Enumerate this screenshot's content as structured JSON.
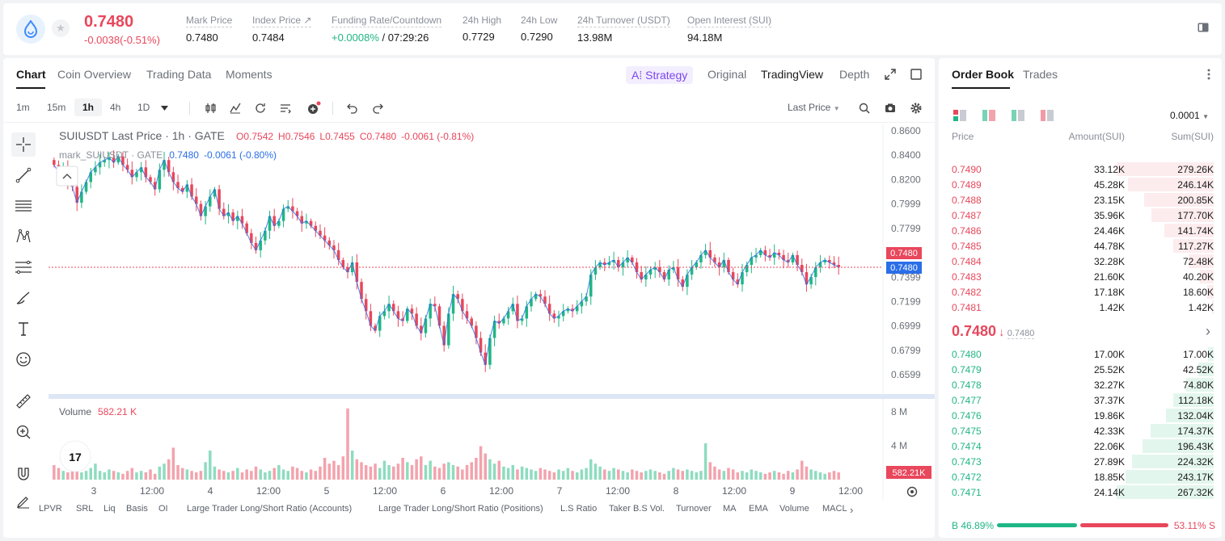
{
  "ticker": {
    "last_price": "0.7480",
    "change": "-0.0038(-0.51%)",
    "stats": [
      {
        "label": "Mark Price",
        "value": "0.7480"
      },
      {
        "label": "Index Price ↗",
        "value": "0.7484"
      },
      {
        "label": "Funding Rate/Countdown",
        "value_green": "+0.0008%",
        "value": " / 07:29:26"
      },
      {
        "label": "24h High",
        "value": "0.7729"
      },
      {
        "label": "24h Low",
        "value": "0.7290"
      },
      {
        "label": "24h Turnover (USDT)",
        "value": "13.98M"
      },
      {
        "label": "Open Interest (SUI)",
        "value": "94.18M"
      }
    ]
  },
  "chart_tabs": [
    "Chart",
    "Coin Overview",
    "Trading Data",
    "Moments"
  ],
  "strategy_label": "A⁞ Strategy",
  "view_tabs": [
    "Original",
    "TradingView",
    "Depth"
  ],
  "timeframes": [
    "1m",
    "15m",
    "1h",
    "4h",
    "1D"
  ],
  "price_source": "Last Price",
  "legend": {
    "main_name": "SUIUSDT Last Price · 1h · GATE",
    "o": "O0.7542",
    "h": "H0.7546",
    "l": "L0.7455",
    "c": "C0.7480",
    "chg": "-0.0061 (-0.81%)",
    "mark_name": "mark_SUIUSDT · GATE",
    "mark_val": "0.7480",
    "mark_chg": "-0.0061 (-0.80%)",
    "volume_label": "Volume",
    "volume_val": "582.21 K"
  },
  "chart_data": {
    "type": "candlestick",
    "price_axis": [
      "0.8600",
      "0.8400",
      "0.8200",
      "0.7999",
      "0.7799",
      "0.7399",
      "0.7199",
      "0.6999",
      "0.6799",
      "0.6599"
    ],
    "ylim": [
      0.6599,
      0.86
    ],
    "volume_axis": [
      "8 M",
      "4 M"
    ],
    "x_labels": [
      "3",
      "12:00",
      "4",
      "12:00",
      "5",
      "12:00",
      "6",
      "12:00",
      "7",
      "12:00",
      "8",
      "12:00",
      "9",
      "12:00"
    ],
    "last_price_tag": "0.7480",
    "mark_price_tag": "0.7480",
    "volume_tag": "582.21K",
    "close_path": [
      0.832,
      0.826,
      0.829,
      0.818,
      0.814,
      0.801,
      0.81,
      0.818,
      0.826,
      0.83,
      0.834,
      0.836,
      0.838,
      0.834,
      0.839,
      0.832,
      0.828,
      0.822,
      0.826,
      0.83,
      0.822,
      0.818,
      0.812,
      0.828,
      0.836,
      0.826,
      0.818,
      0.813,
      0.81,
      0.816,
      0.806,
      0.8,
      0.79,
      0.798,
      0.806,
      0.812,
      0.796,
      0.79,
      0.793,
      0.786,
      0.79,
      0.784,
      0.776,
      0.768,
      0.762,
      0.77,
      0.778,
      0.79,
      0.782,
      0.786,
      0.796,
      0.798,
      0.794,
      0.79,
      0.784,
      0.786,
      0.782,
      0.778,
      0.774,
      0.77,
      0.766,
      0.762,
      0.754,
      0.748,
      0.744,
      0.752,
      0.736,
      0.722,
      0.712,
      0.7,
      0.696,
      0.708,
      0.712,
      0.718,
      0.712,
      0.706,
      0.704,
      0.714,
      0.71,
      0.7,
      0.694,
      0.706,
      0.718,
      0.716,
      0.7,
      0.684,
      0.71,
      0.726,
      0.722,
      0.712,
      0.706,
      0.7,
      0.69,
      0.678,
      0.668,
      0.69,
      0.704,
      0.702,
      0.706,
      0.712,
      0.718,
      0.704,
      0.706,
      0.716,
      0.722,
      0.726,
      0.724,
      0.718,
      0.71,
      0.706,
      0.708,
      0.712,
      0.714,
      0.712,
      0.716,
      0.72,
      0.724,
      0.742,
      0.748,
      0.752,
      0.75,
      0.752,
      0.754,
      0.748,
      0.752,
      0.756,
      0.752,
      0.744,
      0.738,
      0.742,
      0.746,
      0.748,
      0.744,
      0.738,
      0.746,
      0.748,
      0.738,
      0.732,
      0.742,
      0.748,
      0.752,
      0.758,
      0.762,
      0.756,
      0.752,
      0.748,
      0.754,
      0.744,
      0.738,
      0.734,
      0.744,
      0.75,
      0.756,
      0.758,
      0.762,
      0.758,
      0.756,
      0.76,
      0.758,
      0.754,
      0.752,
      0.758,
      0.75,
      0.744,
      0.734,
      0.74,
      0.748,
      0.752,
      0.754,
      0.752,
      0.75,
      0.748
    ],
    "volume_path": [
      0.2,
      0.16,
      0.12,
      0.1,
      0.14,
      0.18,
      0.1,
      0.12,
      0.16,
      0.22,
      0.12,
      0.1,
      0.14,
      0.12,
      0.1,
      0.08,
      0.12,
      0.16,
      0.1,
      0.12,
      0.1,
      0.14,
      0.08,
      0.18,
      0.22,
      0.28,
      0.44,
      0.2,
      0.16,
      0.14,
      0.12,
      0.1,
      0.12,
      0.24,
      0.4,
      0.18,
      0.14,
      0.12,
      0.1,
      0.12,
      0.16,
      0.1,
      0.14,
      0.12,
      0.18,
      0.14,
      0.1,
      0.12,
      0.16,
      0.2,
      0.14,
      0.12,
      0.18,
      0.16,
      0.12,
      0.1,
      0.14,
      0.12,
      0.18,
      0.3,
      0.22,
      0.26,
      0.2,
      0.32,
      0.98,
      0.4,
      0.28,
      0.24,
      0.2,
      0.18,
      0.22,
      0.16,
      0.26,
      0.2,
      0.18,
      0.22,
      0.3,
      0.24,
      0.2,
      0.28,
      0.32,
      0.2,
      0.26,
      0.18,
      0.16,
      0.22,
      0.24,
      0.2,
      0.18,
      0.14,
      0.2,
      0.24,
      0.3,
      0.46,
      0.36,
      0.28,
      0.22,
      0.26,
      0.18,
      0.16,
      0.2,
      0.14,
      0.18,
      0.16,
      0.14,
      0.12,
      0.16,
      0.14,
      0.12,
      0.1,
      0.14,
      0.12,
      0.16,
      0.12,
      0.1,
      0.14,
      0.16,
      0.28,
      0.22,
      0.18,
      0.14,
      0.12,
      0.16,
      0.14,
      0.12,
      0.1,
      0.14,
      0.12,
      0.1,
      0.12,
      0.14,
      0.12,
      0.1,
      0.08,
      0.12,
      0.16,
      0.14,
      0.12,
      0.14,
      0.12,
      0.1,
      0.12,
      0.5,
      0.24,
      0.18,
      0.14,
      0.12,
      0.16,
      0.14,
      0.1,
      0.12,
      0.1,
      0.14,
      0.12,
      0.1,
      0.08,
      0.1,
      0.12,
      0.1,
      0.08,
      0.12,
      0.1,
      0.14,
      0.26,
      0.18,
      0.14,
      0.12,
      0.1,
      0.08,
      0.1,
      0.12,
      0.1,
      0.08,
      0.1,
      0.12
    ]
  },
  "bottom_indicators": [
    "LPVR",
    "SRL",
    "Liq",
    "Basis",
    "OI",
    "Large Trader Long/Short Ratio (Accounts)",
    "Large Trader Long/Short Ratio (Positions)",
    "L.S Ratio",
    "Taker B.S Vol.",
    "Turnover",
    "MA",
    "EMA",
    "Volume",
    "MACL"
  ],
  "orderbook": {
    "tabs": [
      "Order Book",
      "Trades"
    ],
    "precision": "0.0001",
    "headers": [
      "Price",
      "Amount(SUI)",
      "Sum(SUI)"
    ],
    "asks": [
      {
        "price": "0.7490",
        "amount": "33.12K",
        "sum": "279.26K",
        "depth": 1.0
      },
      {
        "price": "0.7489",
        "amount": "45.28K",
        "sum": "246.14K",
        "depth": 0.88
      },
      {
        "price": "0.7488",
        "amount": "23.15K",
        "sum": "200.85K",
        "depth": 0.72
      },
      {
        "price": "0.7487",
        "amount": "35.96K",
        "sum": "177.70K",
        "depth": 0.64
      },
      {
        "price": "0.7486",
        "amount": "24.46K",
        "sum": "141.74K",
        "depth": 0.51
      },
      {
        "price": "0.7485",
        "amount": "44.78K",
        "sum": "117.27K",
        "depth": 0.42
      },
      {
        "price": "0.7484",
        "amount": "32.28K",
        "sum": "72.48K",
        "depth": 0.26
      },
      {
        "price": "0.7483",
        "amount": "21.60K",
        "sum": "40.20K",
        "depth": 0.14
      },
      {
        "price": "0.7482",
        "amount": "17.18K",
        "sum": "18.60K",
        "depth": 0.07
      },
      {
        "price": "0.7481",
        "amount": "1.42K",
        "sum": "1.42K",
        "depth": 0.01
      }
    ],
    "mid_price": "0.7480",
    "mid_mark": "0.7480",
    "bids": [
      {
        "price": "0.7480",
        "amount": "17.00K",
        "sum": "17.00K",
        "depth": 0.06
      },
      {
        "price": "0.7479",
        "amount": "25.52K",
        "sum": "42.52K",
        "depth": 0.16
      },
      {
        "price": "0.7478",
        "amount": "32.27K",
        "sum": "74.80K",
        "depth": 0.28
      },
      {
        "price": "0.7477",
        "amount": "37.37K",
        "sum": "112.18K",
        "depth": 0.42
      },
      {
        "price": "0.7476",
        "amount": "19.86K",
        "sum": "132.04K",
        "depth": 0.49
      },
      {
        "price": "0.7475",
        "amount": "42.33K",
        "sum": "174.37K",
        "depth": 0.65
      },
      {
        "price": "0.7474",
        "amount": "22.06K",
        "sum": "196.43K",
        "depth": 0.73
      },
      {
        "price": "0.7473",
        "amount": "27.89K",
        "sum": "224.32K",
        "depth": 0.84
      },
      {
        "price": "0.7472",
        "amount": "18.85K",
        "sum": "243.17K",
        "depth": 0.91
      },
      {
        "price": "0.7471",
        "amount": "24.14K",
        "sum": "267.32K",
        "depth": 1.0
      }
    ],
    "buy_ratio": "46.89%",
    "sell_ratio": "53.11%",
    "buy_fraction": 0.4689,
    "buy_letter": "B",
    "sell_letter": "S"
  },
  "colors": {
    "up": "#1fb685",
    "down": "#e8475c",
    "accent": "#7b46f0",
    "mark": "#2a6ee8"
  }
}
